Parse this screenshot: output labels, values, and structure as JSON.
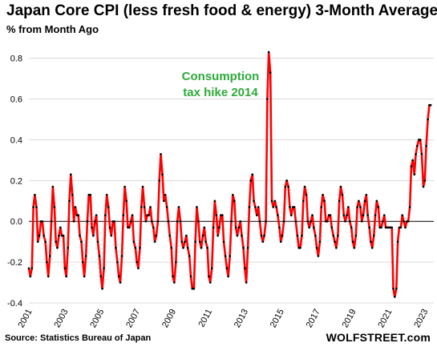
{
  "chart_data": {
    "type": "line",
    "title": "Japan Core CPI (less fresh food & energy) 3-Month Average",
    "subtitle": "% from Month Ago",
    "source": "Source: Statistics Bureau of Japan",
    "brand": "WOLFSTREET.com",
    "annotation": {
      "line1": "Consumption",
      "line2": "tax hike 2014",
      "color": "#2eaa3a"
    },
    "x_start": 2001,
    "x_end": 2023.5,
    "ylim": [
      -0.4,
      0.85
    ],
    "yticks": [
      "-0.4",
      "-0.2",
      "0.0",
      "0.2",
      "0.4",
      "0.6",
      "0.8"
    ],
    "ytick_values": [
      -0.4,
      -0.2,
      0.0,
      0.2,
      0.4,
      0.6,
      0.8
    ],
    "xticks": [
      "2001",
      "2003",
      "2005",
      "2007",
      "2009",
      "2011",
      "2013",
      "2015",
      "2017",
      "2019",
      "2021",
      "2023"
    ],
    "xtick_values": [
      2001,
      2003,
      2005,
      2007,
      2009,
      2011,
      2013,
      2015,
      2017,
      2019,
      2021,
      2023
    ],
    "grid": true,
    "line_color": "#ff0000",
    "marker_color": "#000000",
    "series": [
      {
        "x": [
          2001.0,
          2001.08,
          2001.17,
          2001.25,
          2001.33,
          2001.42,
          2001.5,
          2001.58,
          2001.67,
          2001.75,
          2001.83,
          2001.92,
          2002.0,
          2002.08,
          2002.17,
          2002.25,
          2002.33,
          2002.42,
          2002.5,
          2002.58,
          2002.67,
          2002.75,
          2002.83,
          2002.92,
          2003.0,
          2003.08,
          2003.17,
          2003.25,
          2003.33,
          2003.42,
          2003.5,
          2003.58,
          2003.67,
          2003.75,
          2003.83,
          2003.92,
          2004.0,
          2004.08,
          2004.17,
          2004.25,
          2004.33,
          2004.42,
          2004.5,
          2004.58,
          2004.67,
          2004.75,
          2004.83,
          2004.92,
          2005.0,
          2005.08,
          2005.17,
          2005.25,
          2005.33,
          2005.42,
          2005.5,
          2005.58,
          2005.67,
          2005.75,
          2005.83,
          2005.92,
          2006.0,
          2006.08,
          2006.17,
          2006.25,
          2006.33,
          2006.42,
          2006.5,
          2006.58,
          2006.67,
          2006.75,
          2006.83,
          2006.92,
          2007.0,
          2007.08,
          2007.17,
          2007.25,
          2007.33,
          2007.42,
          2007.5,
          2007.58,
          2007.67,
          2007.75,
          2007.83,
          2007.92,
          2008.0,
          2008.08,
          2008.17,
          2008.25,
          2008.33,
          2008.42,
          2008.5,
          2008.58,
          2008.67,
          2008.75,
          2008.83,
          2008.92,
          2009.0,
          2009.08,
          2009.17,
          2009.25,
          2009.33,
          2009.42,
          2009.5,
          2009.58,
          2009.67,
          2009.75,
          2009.83,
          2009.92,
          2010.0,
          2010.08,
          2010.17,
          2010.25,
          2010.33,
          2010.42,
          2010.5,
          2010.58,
          2010.67,
          2010.75,
          2010.83,
          2010.92,
          2011.0,
          2011.08,
          2011.17,
          2011.25,
          2011.33,
          2011.42,
          2011.5,
          2011.58,
          2011.67,
          2011.75,
          2011.83,
          2011.92,
          2012.0,
          2012.08,
          2012.17,
          2012.25,
          2012.33,
          2012.42,
          2012.5,
          2012.58,
          2012.67,
          2012.75,
          2012.83,
          2012.92,
          2013.0,
          2013.08,
          2013.17,
          2013.25,
          2013.33,
          2013.42,
          2013.5,
          2013.58,
          2013.67,
          2013.75,
          2013.83,
          2013.92,
          2014.0,
          2014.08,
          2014.17,
          2014.25,
          2014.33,
          2014.42,
          2014.5,
          2014.58,
          2014.67,
          2014.75,
          2014.83,
          2014.92,
          2015.0,
          2015.08,
          2015.17,
          2015.25,
          2015.33,
          2015.42,
          2015.5,
          2015.58,
          2015.67,
          2015.75,
          2015.83,
          2015.92,
          2016.0,
          2016.08,
          2016.17,
          2016.25,
          2016.33,
          2016.42,
          2016.5,
          2016.58,
          2016.67,
          2016.75,
          2016.83,
          2016.92,
          2017.0,
          2017.08,
          2017.17,
          2017.25,
          2017.33,
          2017.42,
          2017.5,
          2017.58,
          2017.67,
          2017.75,
          2017.83,
          2017.92,
          2018.0,
          2018.08,
          2018.17,
          2018.25,
          2018.33,
          2018.42,
          2018.5,
          2018.58,
          2018.67,
          2018.75,
          2018.83,
          2018.92,
          2019.0,
          2019.08,
          2019.17,
          2019.25,
          2019.33,
          2019.42,
          2019.5,
          2019.58,
          2019.67,
          2019.75,
          2019.83,
          2019.92,
          2020.0,
          2020.08,
          2020.17,
          2020.25,
          2020.33,
          2020.42,
          2020.5,
          2020.58,
          2020.67,
          2020.75,
          2020.83,
          2020.92,
          2021.0,
          2021.08,
          2021.17,
          2021.25,
          2021.33,
          2021.42,
          2021.5,
          2021.58,
          2021.67,
          2021.75,
          2021.83,
          2021.92,
          2022.0,
          2022.08,
          2022.17,
          2022.25,
          2022.33,
          2022.42,
          2022.5,
          2022.58,
          2022.67,
          2022.75,
          2022.83,
          2022.92,
          2023.0,
          2023.08,
          2023.17,
          2023.25,
          2023.33
        ],
        "values": [
          -0.23,
          -0.27,
          -0.23,
          0.07,
          0.13,
          0.07,
          -0.1,
          -0.07,
          0.0,
          0.0,
          -0.07,
          -0.1,
          -0.2,
          -0.27,
          -0.17,
          0.0,
          0.17,
          0.07,
          -0.1,
          -0.13,
          -0.07,
          -0.03,
          -0.07,
          -0.07,
          -0.23,
          -0.27,
          -0.13,
          0.1,
          0.23,
          0.13,
          0.0,
          0.07,
          0.03,
          0.03,
          -0.07,
          -0.1,
          -0.2,
          -0.27,
          -0.17,
          0.0,
          0.13,
          0.13,
          -0.03,
          -0.07,
          0.0,
          0.03,
          -0.1,
          -0.17,
          -0.27,
          -0.33,
          -0.23,
          0.03,
          0.13,
          0.07,
          -0.03,
          -0.07,
          0.0,
          0.0,
          -0.13,
          -0.2,
          -0.27,
          -0.3,
          -0.17,
          0.03,
          0.17,
          0.1,
          -0.03,
          -0.03,
          0.0,
          0.03,
          -0.1,
          -0.13,
          -0.2,
          -0.23,
          -0.13,
          0.07,
          0.17,
          0.07,
          0.0,
          0.03,
          0.03,
          0.07,
          0.0,
          -0.03,
          -0.1,
          -0.07,
          0.0,
          0.2,
          0.33,
          0.23,
          0.1,
          0.13,
          0.07,
          0.0,
          -0.07,
          -0.13,
          -0.27,
          -0.3,
          -0.2,
          0.0,
          0.07,
          0.0,
          -0.1,
          -0.13,
          -0.1,
          -0.07,
          -0.13,
          -0.17,
          -0.27,
          -0.33,
          -0.33,
          -0.1,
          0.07,
          0.0,
          -0.1,
          -0.13,
          -0.07,
          -0.03,
          -0.1,
          -0.13,
          -0.27,
          -0.3,
          -0.23,
          -0.03,
          0.1,
          0.03,
          -0.07,
          -0.03,
          0.03,
          0.03,
          -0.1,
          -0.17,
          -0.23,
          -0.27,
          -0.17,
          0.0,
          0.13,
          0.1,
          -0.03,
          -0.07,
          -0.03,
          0.0,
          -0.07,
          -0.13,
          -0.23,
          -0.3,
          -0.13,
          0.07,
          0.2,
          0.23,
          0.1,
          0.07,
          0.03,
          0.07,
          0.0,
          -0.07,
          -0.1,
          -0.07,
          0.0,
          0.6,
          0.83,
          0.73,
          0.1,
          0.07,
          0.1,
          0.07,
          0.03,
          -0.03,
          -0.1,
          -0.07,
          0.0,
          0.17,
          0.2,
          0.17,
          0.07,
          0.03,
          0.07,
          0.07,
          0.0,
          -0.07,
          -0.13,
          -0.13,
          -0.07,
          0.1,
          0.17,
          0.13,
          0.0,
          -0.03,
          0.0,
          0.03,
          -0.03,
          -0.07,
          -0.13,
          -0.17,
          -0.1,
          0.07,
          0.13,
          0.1,
          0.0,
          0.0,
          0.03,
          0.03,
          -0.03,
          -0.07,
          -0.1,
          -0.13,
          -0.07,
          0.1,
          0.17,
          0.13,
          0.03,
          0.0,
          0.03,
          0.07,
          0.0,
          -0.03,
          -0.1,
          -0.13,
          -0.07,
          0.07,
          0.1,
          0.07,
          0.0,
          0.03,
          0.1,
          0.13,
          0.03,
          -0.03,
          -0.1,
          -0.13,
          -0.07,
          0.03,
          0.1,
          0.07,
          -0.03,
          -0.03,
          0.0,
          0.03,
          -0.03,
          -0.03,
          -0.03,
          -0.03,
          -0.03,
          -0.33,
          -0.37,
          -0.33,
          -0.1,
          -0.03,
          -0.03,
          0.03,
          0.0,
          -0.03,
          0.0,
          0.0,
          0.07,
          0.27,
          0.3,
          0.23,
          0.33,
          0.37,
          0.4,
          0.4,
          0.33,
          0.17,
          0.2,
          0.37,
          0.5,
          0.57,
          0.57
        ]
      }
    ]
  }
}
